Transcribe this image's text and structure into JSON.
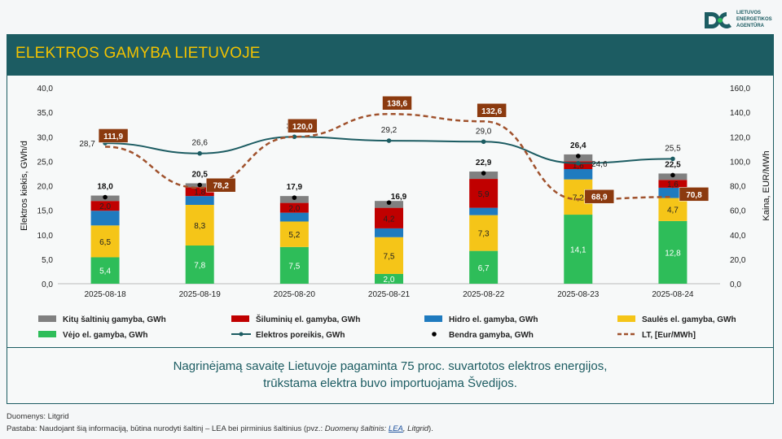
{
  "logo": {
    "line1": "LIETUVOS",
    "line2": "ENERGETIKOS",
    "line3": "AGENTŪRA"
  },
  "title": "ELEKTROS GAMYBA LIETUVOJE",
  "message": {
    "line1": "Nagrinėjamą savaitę Lietuvoje pagaminta 75 proc. suvartotos elektros energijos,",
    "line2": "trūkstama elektra buvo importuojama Švedijos."
  },
  "footer": {
    "source": "Duomenys: Litgrid",
    "note_prefix": "Pastaba: Naudojant šią informaciją, būtina nurodyti šaltinį – LEA bei pirminius šaltinius (pvz.: ",
    "note_italic": "Duomenų šaltinis: ",
    "note_link": "LEA",
    "note_italic2": ", Litgrid",
    "note_suffix": ")."
  },
  "chart_data": {
    "type": "bar",
    "stacked": true,
    "categories": [
      "2025-08-18",
      "2025-08-19",
      "2025-08-20",
      "2025-08-21",
      "2025-08-22",
      "2025-08-23",
      "2025-08-24"
    ],
    "ylabel": "Elektros kiekis, GWh/d",
    "y2label": "Kaina, EUR/MWh",
    "ylim": [
      0,
      40
    ],
    "y2lim": [
      0,
      160
    ],
    "yticks": [
      "0,0",
      "5,0",
      "10,0",
      "15,0",
      "20,0",
      "25,0",
      "30,0",
      "35,0",
      "40,0"
    ],
    "y2ticks": [
      "0,0",
      "20,0",
      "40,0",
      "60,0",
      "80,0",
      "100,0",
      "120,0",
      "140,0",
      "160,0"
    ],
    "bar_series": [
      {
        "name": "Vėjo el. gamyba, GWh",
        "color": "#2ebd59",
        "values": [
          5.4,
          7.8,
          7.5,
          2.0,
          6.7,
          14.1,
          12.8
        ],
        "labels": [
          "5,4",
          "7,8",
          "7,5",
          "2,0",
          "6,7",
          "14,1",
          "12,8"
        ]
      },
      {
        "name": "Saulės el. gamyba, GWh",
        "color": "#f5c518",
        "values": [
          6.5,
          8.3,
          5.2,
          7.5,
          7.3,
          7.2,
          4.7
        ],
        "labels": [
          "6,5",
          "8,3",
          "5,2",
          "7,5",
          "7,3",
          "7,2",
          "4,7"
        ]
      },
      {
        "name": "Hidro el. gamyba, GWh",
        "color": "#1f7bbf",
        "values": [
          3.0,
          1.8,
          1.8,
          1.8,
          1.5,
          2.1,
          2.1
        ],
        "labels": [
          "",
          "",
          "",
          "",
          "",
          "",
          ""
        ]
      },
      {
        "name": "Šiluminių el. gamyba, GWh",
        "color": "#c00000",
        "values": [
          2.0,
          1.8,
          2.0,
          4.2,
          5.9,
          1.6,
          1.6
        ],
        "labels": [
          "2,0",
          "1,8",
          "2,0",
          "4,2",
          "5,9",
          "1,6",
          "1,6"
        ]
      },
      {
        "name": "Kitų šaltinių gamyba,  GWh",
        "color": "#808080",
        "values": [
          1.1,
          0.8,
          1.4,
          1.4,
          1.5,
          1.4,
          1.3
        ],
        "labels": [
          "",
          "",
          "",
          "",
          "",
          "",
          ""
        ]
      }
    ],
    "total": {
      "name": "Bendra gamyba, GWh",
      "values": [
        18.0,
        20.5,
        17.9,
        16.9,
        22.9,
        26.4,
        22.5
      ],
      "labels": [
        "18,0",
        "20,5",
        "17,9",
        "16,9",
        "22,9",
        "26,4",
        "22,5"
      ]
    },
    "demand": {
      "name": "Elektros poreikis, GWh",
      "color": "#1c5c62",
      "values": [
        28.7,
        26.6,
        30.0,
        29.2,
        29.0,
        24.6,
        25.5
      ],
      "labels": [
        "28,7",
        "26,6",
        "30,0",
        "29,2",
        "29,0",
        "24,6",
        "25,5"
      ]
    },
    "price": {
      "name": "LT, [Eur/MWh]",
      "color": "#a0522d",
      "values": [
        111.9,
        78.2,
        120.0,
        138.6,
        132.6,
        68.9,
        70.8
      ],
      "labels": [
        "111,9",
        "78,2",
        "120,0",
        "138,6",
        "132,6",
        "68,9",
        "70,8"
      ]
    },
    "legend_order": [
      "Kitų šaltinių gamyba,  GWh",
      "Šiluminių el. gamyba, GWh",
      "Hidro el. gamyba, GWh",
      "Saulės el. gamyba, GWh",
      "Vėjo el. gamyba, GWh",
      "Elektros poreikis, GWh",
      "Bendra gamyba, GWh",
      "LT, [Eur/MWh]"
    ]
  }
}
